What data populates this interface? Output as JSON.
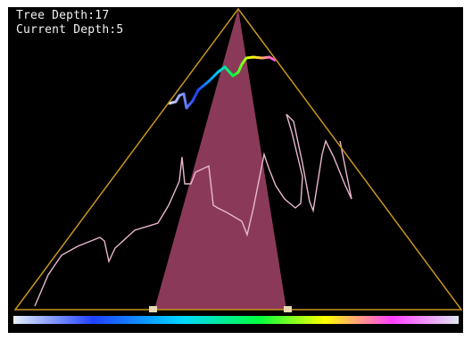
{
  "info": {
    "tree_depth_label": "Tree Depth:17",
    "current_depth_label": "Current Depth:5"
  },
  "depth": {
    "tree": 17,
    "current": 5
  },
  "colors": {
    "background": "#000000",
    "triangle_outline": "#c8961e",
    "depth_wedge": "#8a3a58",
    "tree_trace": "#e8b8d0",
    "marker": "#e8d8b0",
    "text": "#f2f2f2"
  },
  "color_scale": {
    "stops": [
      "#e6f0f8",
      "#2040ff",
      "#00d8ff",
      "#00ff40",
      "#ffff00",
      "#ff40ff",
      "#e0e8f0"
    ]
  }
}
